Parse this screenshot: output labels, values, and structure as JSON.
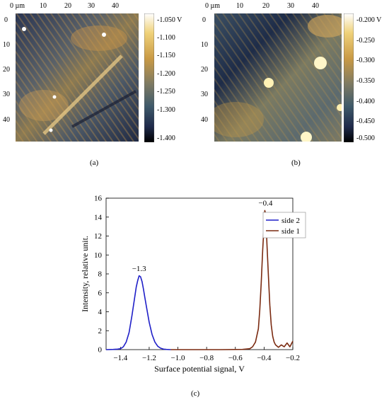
{
  "panels": {
    "a": {
      "label": "(a)",
      "axis_unit": "µm",
      "x_ticks": [
        "0 µm",
        "10",
        "20",
        "30",
        "40"
      ],
      "y_ticks": [
        "0",
        "10",
        "20",
        "30",
        "40"
      ],
      "colorbar_ticks": [
        "-1.050 V",
        "-1.100",
        "-1.150",
        "-1.200",
        "-1.250",
        "-1.300",
        "-1.400"
      ]
    },
    "b": {
      "label": "(b)",
      "x_ticks": [
        "0 µm",
        "10",
        "20",
        "30",
        "40"
      ],
      "y_ticks": [
        "0",
        "10",
        "20",
        "30",
        "40"
      ],
      "colorbar_ticks": [
        "-0.200 V",
        "-0.250",
        "-0.300",
        "-0.350",
        "-0.400",
        "-0.450",
        "-0.500"
      ]
    },
    "c": {
      "label": "(c)"
    }
  },
  "colormap": {
    "stops": [
      "#000000",
      "#1f2a4a",
      "#3f5a6a",
      "#7d7a63",
      "#c99a45",
      "#f0d27a",
      "#ffffff"
    ]
  },
  "chart_data": {
    "type": "line",
    "xlabel": "Surface potential signal, V",
    "ylabel": "Intensity, relative unit.",
    "xlim": [
      -1.5,
      -0.2
    ],
    "ylim": [
      0,
      16
    ],
    "x_ticks": [
      -1.4,
      -1.2,
      -1.0,
      -0.8,
      -0.6,
      -0.4,
      -0.2
    ],
    "x_tick_labels": [
      "−1.4",
      "−1.2",
      "−1.0",
      "−0.8",
      "−0.6",
      "−0.4",
      "−0.2"
    ],
    "y_ticks": [
      0,
      2,
      4,
      6,
      8,
      10,
      12,
      14,
      16
    ],
    "legend_position": "top-right",
    "series": [
      {
        "name": "side 2",
        "color": "#1f1fc8",
        "x": [
          -1.5,
          -1.45,
          -1.42,
          -1.4,
          -1.38,
          -1.36,
          -1.34,
          -1.32,
          -1.3,
          -1.29,
          -1.28,
          -1.27,
          -1.26,
          -1.25,
          -1.24,
          -1.23,
          -1.22,
          -1.2,
          -1.18,
          -1.16,
          -1.14,
          -1.12,
          -1.1,
          -1.08,
          -1.05
        ],
        "y": [
          0.0,
          0.02,
          0.05,
          0.1,
          0.3,
          0.8,
          1.8,
          3.6,
          5.6,
          6.6,
          7.3,
          7.8,
          7.7,
          7.2,
          6.4,
          5.5,
          4.6,
          2.9,
          1.6,
          0.8,
          0.35,
          0.15,
          0.05,
          0.02,
          0.0
        ]
      },
      {
        "name": "side 1",
        "color": "#7a2a10",
        "x": [
          -1.05,
          -0.9,
          -0.7,
          -0.55,
          -0.5,
          -0.48,
          -0.46,
          -0.44,
          -0.43,
          -0.42,
          -0.41,
          -0.4,
          -0.395,
          -0.39,
          -0.385,
          -0.38,
          -0.37,
          -0.36,
          -0.35,
          -0.34,
          -0.33,
          -0.32,
          -0.3,
          -0.28,
          -0.26,
          -0.24,
          -0.22,
          -0.2
        ],
        "y": [
          0.0,
          0.0,
          0.0,
          0.02,
          0.1,
          0.3,
          0.8,
          2.2,
          4.2,
          7.0,
          10.5,
          13.2,
          14.7,
          14.4,
          13.2,
          11.2,
          7.8,
          4.7,
          2.6,
          1.4,
          0.8,
          0.5,
          0.25,
          0.5,
          0.3,
          0.7,
          0.3,
          0.9
        ]
      }
    ],
    "annotations": [
      {
        "text": "−1.3",
        "x": -1.27,
        "y": 8.3
      },
      {
        "text": "−0.4",
        "x": -0.39,
        "y": 15.2
      }
    ]
  }
}
